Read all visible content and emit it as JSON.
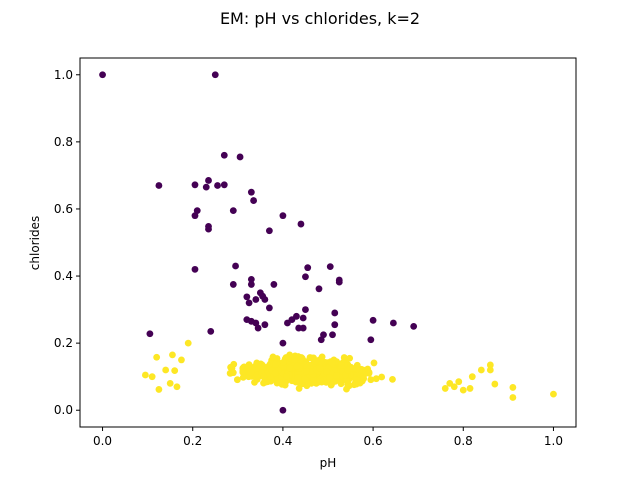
{
  "chart_data": {
    "type": "scatter",
    "title": "EM: pH vs chlorides, k=2",
    "xlabel": "pH",
    "ylabel": "chlorides",
    "xlim": [
      -0.05,
      1.05
    ],
    "ylim": [
      -0.05,
      1.05
    ],
    "xticks": [
      "0.0",
      "0.2",
      "0.4",
      "0.6",
      "0.8",
      "1.0"
    ],
    "yticks": [
      "0.0",
      "0.2",
      "0.4",
      "0.6",
      "0.8",
      "1.0"
    ],
    "grid": false,
    "legend": "none",
    "colors": {
      "cluster_0": "#440154",
      "cluster_1": "#fde725"
    },
    "series": [
      {
        "color": "#440154",
        "points": [
          [
            0.0,
            1.0
          ],
          [
            0.25,
            1.0
          ],
          [
            0.27,
            0.76
          ],
          [
            0.305,
            0.755
          ],
          [
            0.125,
            0.67
          ],
          [
            0.205,
            0.672
          ],
          [
            0.235,
            0.685
          ],
          [
            0.23,
            0.665
          ],
          [
            0.255,
            0.67
          ],
          [
            0.27,
            0.672
          ],
          [
            0.33,
            0.65
          ],
          [
            0.335,
            0.625
          ],
          [
            0.21,
            0.595
          ],
          [
            0.205,
            0.58
          ],
          [
            0.29,
            0.595
          ],
          [
            0.4,
            0.58
          ],
          [
            0.44,
            0.555
          ],
          [
            0.235,
            0.548
          ],
          [
            0.235,
            0.54
          ],
          [
            0.37,
            0.535
          ],
          [
            0.295,
            0.43
          ],
          [
            0.205,
            0.42
          ],
          [
            0.505,
            0.428
          ],
          [
            0.455,
            0.425
          ],
          [
            0.45,
            0.398
          ],
          [
            0.33,
            0.39
          ],
          [
            0.33,
            0.375
          ],
          [
            0.29,
            0.375
          ],
          [
            0.38,
            0.375
          ],
          [
            0.525,
            0.388
          ],
          [
            0.525,
            0.382
          ],
          [
            0.48,
            0.362
          ],
          [
            0.35,
            0.35
          ],
          [
            0.355,
            0.34
          ],
          [
            0.32,
            0.338
          ],
          [
            0.34,
            0.33
          ],
          [
            0.36,
            0.33
          ],
          [
            0.325,
            0.32
          ],
          [
            0.37,
            0.305
          ],
          [
            0.45,
            0.3
          ],
          [
            0.515,
            0.29
          ],
          [
            0.32,
            0.27
          ],
          [
            0.33,
            0.265
          ],
          [
            0.34,
            0.26
          ],
          [
            0.36,
            0.255
          ],
          [
            0.345,
            0.245
          ],
          [
            0.41,
            0.26
          ],
          [
            0.42,
            0.27
          ],
          [
            0.43,
            0.28
          ],
          [
            0.445,
            0.275
          ],
          [
            0.435,
            0.245
          ],
          [
            0.445,
            0.245
          ],
          [
            0.515,
            0.255
          ],
          [
            0.6,
            0.268
          ],
          [
            0.645,
            0.26
          ],
          [
            0.69,
            0.25
          ],
          [
            0.49,
            0.225
          ],
          [
            0.485,
            0.21
          ],
          [
            0.51,
            0.225
          ],
          [
            0.595,
            0.21
          ],
          [
            0.105,
            0.228
          ],
          [
            0.24,
            0.235
          ],
          [
            0.4,
            0.2
          ],
          [
            0.4,
            0.0
          ]
        ]
      },
      {
        "color": "#fde725",
        "points": []
      }
    ]
  }
}
